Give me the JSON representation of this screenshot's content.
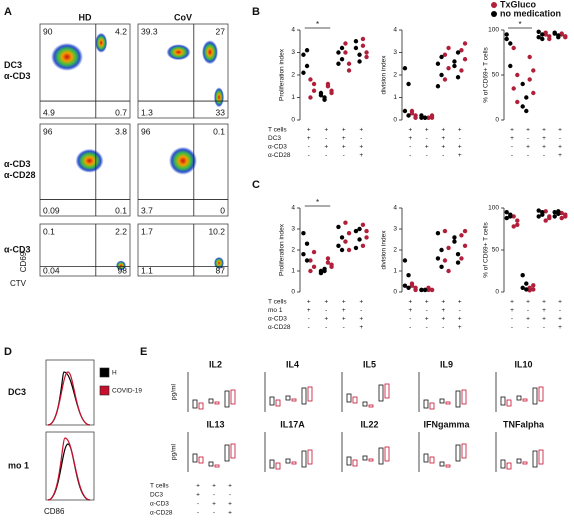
{
  "panel_a": {
    "label": "A",
    "columns": [
      "HD",
      "CoV"
    ],
    "rows": [
      {
        "label": [
          "DC3",
          "α-CD3"
        ],
        "quadrants": [
          [
            "90",
            "4.2",
            "4.9",
            "0.7"
          ],
          [
            "39.3",
            "27",
            "1.3",
            "33"
          ]
        ]
      },
      {
        "label": [
          "α-CD3",
          "α-CD28"
        ],
        "quadrants": [
          [
            "96",
            "3.8",
            "0.09",
            "0.1"
          ],
          [
            "96",
            "0.1",
            "3.7",
            "0"
          ]
        ]
      },
      {
        "label": [
          "α-CD3"
        ],
        "quadrants": [
          [
            "0.1",
            "2.2",
            "0.04",
            "98"
          ],
          [
            "1.7",
            "10.2",
            "1.1",
            "87"
          ]
        ]
      }
    ],
    "y_axis": "CD69",
    "x_axis": "CTV"
  },
  "panel_b": {
    "label": "B",
    "legend": [
      {
        "name": "TxGluco",
        "color": "#b0203a"
      },
      {
        "name": "no medication",
        "color": "#000000"
      }
    ],
    "conditions": [
      {
        "name": "T cells",
        "signs": [
          "+",
          "+",
          "+",
          "+"
        ]
      },
      {
        "name": "DC3",
        "signs": [
          "+",
          "-",
          "+",
          "-"
        ]
      },
      {
        "name": "α-CD3",
        "signs": [
          "-",
          "+",
          "+",
          "+"
        ]
      },
      {
        "name": "α-CD28",
        "signs": [
          "-",
          "-",
          "-",
          "+"
        ]
      }
    ],
    "charts": [
      {
        "type": "dot",
        "ylabel": "Proliferation index",
        "ylim": [
          0,
          4
        ],
        "yticks": [
          0,
          1,
          2,
          3,
          4
        ],
        "significance": "*",
        "series": [
          {
            "values": [
              [
                1.8,
                1.3,
                1.0,
                1.6
              ],
              [
                1.5,
                1.3,
                1.6,
                1.2
              ],
              [
                3.4,
                2.5,
                3.0,
                2.2
              ],
              [
                3.3,
                2.8,
                3.6,
                3.0
              ]
            ]
          },
          {
            "values": [
              [
                2.9,
                2.4,
                2.1,
                3.1
              ],
              [
                1.1,
                1.0,
                1.2,
                0.9
              ],
              [
                3.0,
                2.7,
                2.5,
                3.2
              ],
              [
                3.2,
                2.9,
                3.5,
                2.6
              ]
            ]
          }
        ]
      },
      {
        "type": "dot",
        "ylabel": "division index",
        "ylim": [
          0,
          4
        ],
        "yticks": [
          0,
          1,
          2,
          3,
          4
        ],
        "series": [
          {
            "values": [
              [
                0.3,
                0.2,
                0.4,
                0.1
              ],
              [
                0.1,
                0.2,
                0.1,
                0.1
              ],
              [
                2.9,
                2.3,
                1.8,
                3.2
              ],
              [
                3.1,
                2.7,
                2.2,
                3.4
              ]
            ]
          },
          {
            "values": [
              [
                2.3,
                1.6,
                0.4,
                0.2
              ],
              [
                0.1,
                0.1,
                0.2,
                0.1
              ],
              [
                2.5,
                2.0,
                1.5,
                2.8
              ],
              [
                2.4,
                1.9,
                2.6,
                3.0
              ]
            ]
          }
        ]
      },
      {
        "type": "dot",
        "ylabel": "% of CD69+ T cells",
        "ylim": [
          0,
          100
        ],
        "yticks": [
          0,
          50,
          100
        ],
        "significance": "*",
        "series": [
          {
            "values": [
              [
                80,
                50,
                35,
                20
              ],
              [
                70,
                55,
                45,
                30
              ],
              [
                95,
                93,
                97,
                90
              ],
              [
                96,
                92,
                95,
                93
              ]
            ]
          },
          {
            "values": [
              [
                95,
                85,
                90,
                60
              ],
              [
                40,
                25,
                15,
                10
              ],
              [
                98,
                95,
                92,
                90
              ],
              [
                97,
                94,
                96,
                92
              ]
            ]
          }
        ]
      }
    ]
  },
  "panel_c": {
    "label": "C",
    "conditions": [
      {
        "name": "T cells",
        "signs": [
          "+",
          "+",
          "+",
          "+"
        ]
      },
      {
        "name": "mo 1",
        "signs": [
          "+",
          "-",
          "+",
          "-"
        ]
      },
      {
        "name": "α-CD3",
        "signs": [
          "-",
          "+",
          "+",
          "+"
        ]
      },
      {
        "name": "α-CD28",
        "signs": [
          "-",
          "-",
          "-",
          "+"
        ]
      }
    ],
    "charts": [
      {
        "type": "dot",
        "ylabel": "Proliferation index",
        "ylim": [
          0,
          4
        ],
        "yticks": [
          0,
          1,
          2,
          3,
          4
        ],
        "significance": "*",
        "series": [
          {
            "values": [
              [
                1.5,
                1.2,
                1.0,
                1.9
              ],
              [
                1.4,
                1.2,
                1.6,
                1.3
              ],
              [
                3.3,
                2.8,
                2.4,
                2.0
              ],
              [
                3.2,
                2.6,
                2.2,
                2.9
              ]
            ]
          },
          {
            "values": [
              [
                2.8,
                2.3,
                1.8,
                1.5
              ],
              [
                1.0,
                1.1,
                0.9,
                1.0
              ],
              [
                3.1,
                2.6,
                2.2,
                2.0
              ],
              [
                2.9,
                2.5,
                2.1,
                3.0
              ]
            ]
          }
        ]
      },
      {
        "type": "dot",
        "ylabel": "division index",
        "ylim": [
          0,
          4
        ],
        "yticks": [
          0,
          1,
          2,
          3,
          4
        ],
        "series": [
          {
            "values": [
              [
                0.4,
                0.2,
                0.3,
                0.1
              ],
              [
                0.1,
                0.1,
                0.2,
                0.1
              ],
              [
                2.9,
                2.1,
                1.5,
                1.0
              ],
              [
                2.7,
                2.2,
                1.6,
                2.9
              ]
            ]
          },
          {
            "values": [
              [
                1.5,
                0.8,
                0.3,
                0.2
              ],
              [
                0.1,
                0.1,
                0.1,
                0.1
              ],
              [
                2.8,
                2.0,
                1.6,
                1.2
              ],
              [
                2.4,
                1.8,
                2.6,
                1.4
              ]
            ]
          }
        ]
      },
      {
        "type": "dot",
        "ylabel": "% of CD69+ T cells",
        "ylim": [
          0,
          100
        ],
        "yticks": [
          0,
          50,
          100
        ],
        "series": [
          {
            "values": [
              [
                90,
                80,
                78,
                85
              ],
              [
                5,
                3,
                2,
                8
              ],
              [
                96,
                88,
                85,
                90
              ],
              [
                94,
                90,
                88,
                92
              ]
            ]
          },
          {
            "values": [
              [
                95,
                90,
                88,
                92
              ],
              [
                20,
                10,
                5,
                3
              ],
              [
                97,
                92,
                90,
                95
              ],
              [
                95,
                93,
                90,
                96
              ]
            ]
          }
        ]
      }
    ]
  },
  "panel_d": {
    "label": "D",
    "legend": [
      {
        "name": "H",
        "color": "#000000"
      },
      {
        "name": "COVID-19",
        "color": "#c8102e"
      }
    ],
    "rows": [
      "DC3",
      "mo 1"
    ],
    "x_axis": "CD86"
  },
  "panel_e": {
    "label": "E",
    "y_unit": "pg/ml",
    "titles": [
      "IL2",
      "IL4",
      "IL5",
      "IL9",
      "IL10",
      "IL13",
      "IL17A",
      "IL22",
      "IFNgamma",
      "TNFalpha"
    ],
    "conditions": [
      {
        "name": "T cells",
        "signs": [
          "+",
          "+",
          "+"
        ]
      },
      {
        "name": "DC3",
        "signs": [
          "+",
          "-",
          "-"
        ]
      },
      {
        "name": "α-CD3",
        "signs": [
          "-",
          "+",
          "+"
        ]
      },
      {
        "name": "α-CD28",
        "signs": [
          "-",
          "-",
          "+"
        ]
      }
    ]
  }
}
